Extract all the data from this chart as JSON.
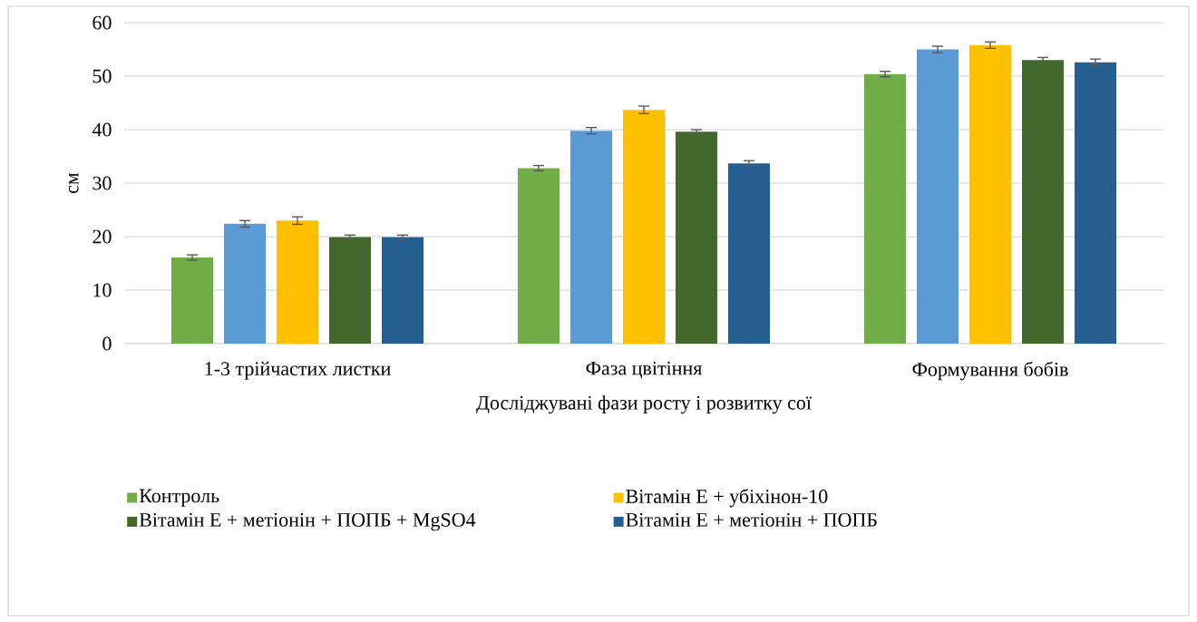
{
  "chart_data": {
    "type": "bar",
    "xlabel": "Досліджувані фази росту і розвитку сої",
    "ylabel": "см",
    "categories": [
      "1-3 трійчастих листки",
      "Фаза цвітіння",
      "Формування бобів"
    ],
    "series": [
      {
        "name": "Контроль",
        "color": "#70ad47",
        "values": [
          16.1,
          32.8,
          50.4
        ],
        "errors": [
          0.5,
          0.5,
          0.5
        ]
      },
      {
        "color": "#5b9bd5",
        "values": [
          22.4,
          39.8,
          55.0
        ],
        "errors": [
          0.6,
          0.6,
          0.6
        ]
      },
      {
        "name": "Вітамін Е + убіхінон-10",
        "color": "#ffc000",
        "values": [
          23.0,
          43.7,
          55.8
        ],
        "errors": [
          0.7,
          0.7,
          0.6
        ]
      },
      {
        "name": "Вітамін Е + метіонін + ПОПБ  + MgSO4",
        "color": "#43682b",
        "values": [
          19.9,
          39.6,
          53.0
        ],
        "errors": [
          0.4,
          0.4,
          0.5
        ]
      },
      {
        "name": "Вітамін Е + метіонін + ПОПБ",
        "color": "#255e91",
        "values": [
          19.9,
          33.7,
          52.6
        ],
        "errors": [
          0.4,
          0.5,
          0.6
        ]
      }
    ],
    "ylim": [
      0,
      60
    ],
    "yticks": [
      0,
      10,
      20,
      30,
      40,
      50,
      60
    ],
    "grid": "y",
    "legend": "bottom"
  }
}
